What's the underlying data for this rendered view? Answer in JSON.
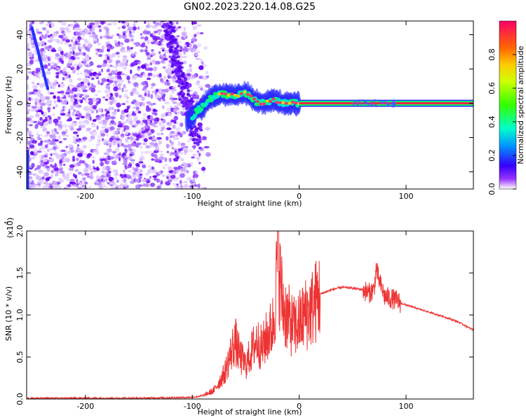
{
  "title": "GN02.2023.220.14.08.G25",
  "chart_data": [
    {
      "type": "heatmap",
      "xlabel": "Height of straight line (km)",
      "ylabel": "Frequency (Hz)",
      "xlim": [
        -255,
        163
      ],
      "ylim": [
        -50,
        48
      ],
      "x_ticks": [
        -200,
        -100,
        0,
        100
      ],
      "x_tick_labels": [
        "-200",
        "-100",
        "0",
        "100"
      ],
      "y_ticks": [
        -40,
        -20,
        0,
        20,
        40
      ],
      "y_tick_labels": [
        "-40",
        "-20",
        "0",
        "20",
        "40"
      ],
      "colorbar": {
        "label": "Normalized spectral amplitude",
        "range": [
          0,
          1
        ],
        "ticks": [
          0.0,
          0.2,
          0.4,
          0.6,
          0.8
        ],
        "tick_labels": [
          "0.0",
          "0.2",
          "0.4",
          "0.6",
          "0.8"
        ]
      },
      "ridge": {
        "x": [
          -105,
          -100,
          -95,
          -90,
          -85,
          -80,
          -75,
          -70,
          -65,
          -60,
          -55,
          -50,
          -45,
          -40,
          -35,
          -30,
          -25,
          -20,
          -15,
          -10,
          -5,
          0,
          163
        ],
        "y": [
          -10,
          -8,
          -4,
          -2,
          2,
          4,
          5,
          5,
          5,
          4.5,
          5,
          6,
          4,
          1,
          0,
          1,
          2,
          1,
          0,
          0,
          0,
          0,
          0
        ]
      },
      "grid": false
    },
    {
      "type": "line",
      "xlabel": "Height of straight line (km)",
      "ylabel": "SNR (10 * v/v)",
      "y_scale_label": "(x10",
      "y_scale_exp": "4",
      "y_scale_suffix": ")",
      "xlim": [
        -255,
        163
      ],
      "ylim": [
        0,
        2.0
      ],
      "x_ticks": [
        -200,
        -100,
        0,
        100
      ],
      "x_tick_labels": [
        "-200",
        "-100",
        "0",
        "100"
      ],
      "y_ticks": [
        0.0,
        0.5,
        1.0,
        1.5,
        2.0
      ],
      "y_tick_labels": [
        "0.0",
        "0.5",
        "1.0",
        "1.5",
        "2.0"
      ],
      "series": [
        {
          "color": "#ee3333",
          "x": [
            -255,
            -200,
            -150,
            -100,
            -90,
            -80,
            -70,
            -65,
            -60,
            -58,
            -55,
            -50,
            -45,
            -40,
            -35,
            -30,
            -25,
            -22,
            -20,
            -18,
            -15,
            -10,
            -5,
            0,
            5,
            10,
            15,
            20,
            30,
            40,
            50,
            60,
            65,
            70,
            72,
            75,
            80,
            85,
            90,
            95,
            100,
            110,
            120,
            130,
            140,
            150,
            163
          ],
          "y": [
            0.01,
            0.01,
            0.01,
            0.02,
            0.04,
            0.1,
            0.3,
            0.5,
            0.7,
            0.6,
            0.5,
            0.4,
            0.55,
            0.7,
            0.6,
            0.75,
            0.85,
            1.2,
            1.9,
            1.4,
            1.1,
            0.95,
            0.85,
            0.9,
            1.0,
            1.05,
            1.15,
            1.25,
            1.3,
            1.33,
            1.32,
            1.3,
            1.26,
            1.3,
            1.55,
            1.4,
            1.22,
            1.2,
            1.18,
            1.14,
            1.12,
            1.08,
            1.04,
            1.0,
            0.96,
            0.91,
            0.82
          ]
        }
      ],
      "grid": false
    }
  ]
}
